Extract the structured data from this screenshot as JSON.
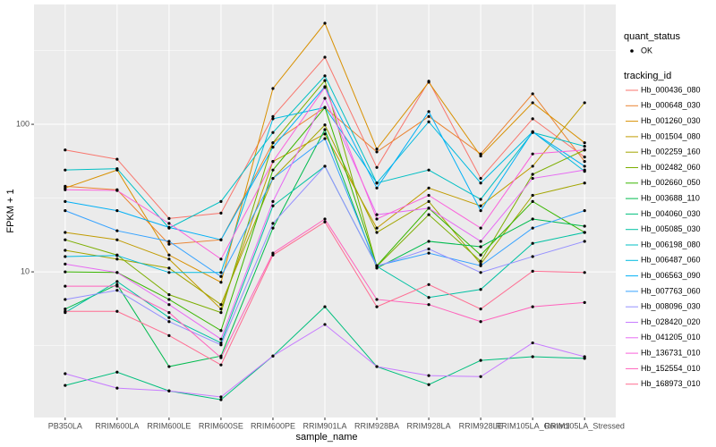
{
  "chart_data": {
    "type": "line",
    "x_label": "sample_name",
    "y_label": "FPKM + 1",
    "log_y": true,
    "grid": true,
    "categories": [
      "PB350LA",
      "RRIM600LA",
      "RRIM600LE",
      "RRIM600SE",
      "RRIM600PE",
      "RRIM901LA",
      "RRIM928BA",
      "RRIM928LA",
      "RRIM928LE",
      "RRIM105LA_Control",
      "RRIM105LA_Stressed"
    ],
    "ylim": [
      1.03,
      649
    ],
    "yticks": [
      10,
      100
    ],
    "point_legend_title": "quant_status",
    "point_legend_entry": "OK",
    "point_color": "#000000",
    "legend_title": "tracking_id",
    "series": [
      {
        "name": "Hb_000436_080",
        "color": "#F8766D",
        "values": [
          67,
          58,
          23,
          25,
          113,
          285,
          51,
          196,
          43,
          109,
          60
        ]
      },
      {
        "name": "Hb_000648_030",
        "color": "#EA8331",
        "values": [
          38,
          36,
          15.4,
          16.5,
          75,
          130,
          65,
          113,
          63,
          161,
          56
        ]
      },
      {
        "name": "Hb_001260_030",
        "color": "#D89000",
        "values": [
          37,
          49,
          13,
          8.5,
          175,
          484,
          68,
          193,
          61,
          140,
          75
        ]
      },
      {
        "name": "Hb_001504_080",
        "color": "#C09B00",
        "values": [
          18.5,
          16.5,
          12.2,
          5.6,
          56,
          86,
          19.8,
          37,
          28,
          52,
          140
        ]
      },
      {
        "name": "Hb_002259_160",
        "color": "#A3A500",
        "values": [
          14,
          12.2,
          10.6,
          6,
          43,
          99,
          18.5,
          30,
          11.3,
          33,
          40
        ]
      },
      {
        "name": "Hb_002482_060",
        "color": "#7CAE00",
        "values": [
          16.5,
          13,
          7,
          5.3,
          75,
          198,
          10.9,
          24.4,
          11.8,
          45.8,
          67
        ]
      },
      {
        "name": "Hb_002660_050",
        "color": "#39B600",
        "values": [
          10,
          9.9,
          6.5,
          4,
          49,
          130,
          11,
          27,
          13,
          30,
          18.5
        ]
      },
      {
        "name": "Hb_003688_110",
        "color": "#00BB4E",
        "values": [
          5.6,
          8.2,
          2.28,
          2.69,
          19.8,
          92,
          10.6,
          16.1,
          14.8,
          22.8,
          20.4
        ]
      },
      {
        "name": "Hb_004060_030",
        "color": "#00BF7D",
        "values": [
          1.7,
          2.09,
          1.56,
          1.36,
          2.69,
          5.8,
          2.28,
          1.72,
          2.51,
          2.66,
          2.59
        ]
      },
      {
        "name": "Hb_005085_030",
        "color": "#00C1A3",
        "values": [
          5.3,
          8.6,
          4.9,
          3.3,
          28,
          52,
          10.9,
          6.7,
          7.6,
          15.6,
          18.5
        ]
      },
      {
        "name": "Hb_006198_080",
        "color": "#00BFC4",
        "values": [
          49,
          50,
          19.8,
          30,
          88,
          213,
          40,
          49,
          31,
          88,
          71
        ]
      },
      {
        "name": "Hb_006487_060",
        "color": "#00BAE0",
        "values": [
          12.7,
          12.9,
          9.9,
          9.9,
          109,
          130,
          40,
          104,
          40,
          89,
          48
        ]
      },
      {
        "name": "Hb_006563_090",
        "color": "#00B0F6",
        "values": [
          30,
          26,
          20,
          16.5,
          70,
          180,
          37,
          122,
          26,
          89,
          52
        ]
      },
      {
        "name": "Hb_007763_060",
        "color": "#35A2FF",
        "values": [
          26,
          19,
          16.1,
          9.3,
          43,
          80,
          11,
          13.4,
          11,
          19.8,
          26
        ]
      },
      {
        "name": "Hb_008096_030",
        "color": "#9590FF",
        "values": [
          6.5,
          7.5,
          4.6,
          3.2,
          21.3,
          52,
          10.9,
          14.3,
          9.9,
          12.7,
          16.1
        ]
      },
      {
        "name": "Hb_028420_020",
        "color": "#C77CFF",
        "values": [
          2.04,
          1.63,
          1.56,
          1.42,
          2.69,
          4.4,
          2.28,
          1.98,
          1.95,
          3.3,
          2.66
        ]
      },
      {
        "name": "Hb_041205_010",
        "color": "#E76BF3",
        "values": [
          11.3,
          9.9,
          6,
          3.5,
          30,
          150,
          24.4,
          27,
          16.1,
          43,
          49
        ]
      },
      {
        "name": "Hb_136731_010",
        "color": "#FA62DB",
        "values": [
          36,
          35.6,
          21.3,
          12.2,
          56,
          178,
          22.8,
          33,
          19.8,
          63,
          67
        ]
      },
      {
        "name": "Hb_152554_010",
        "color": "#FF62BC",
        "values": [
          8,
          8,
          5.3,
          2.62,
          13.4,
          22.8,
          6.5,
          6,
          4.6,
          5.8,
          6.2
        ]
      },
      {
        "name": "Hb_168973_010",
        "color": "#FF6C91",
        "values": [
          5.4,
          5.4,
          3.7,
          2.34,
          13,
          21.8,
          5.8,
          8.2,
          5.6,
          10.1,
          9.9
        ]
      }
    ]
  }
}
